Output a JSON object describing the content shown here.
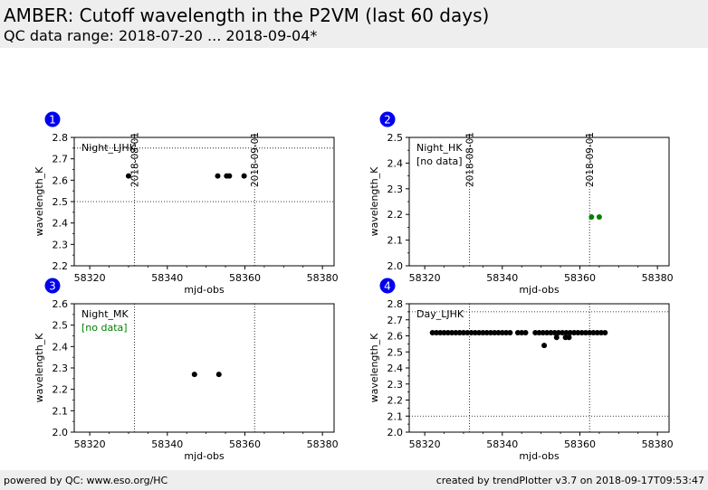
{
  "header": {
    "title": "AMBER: Cutoff wavelength in the P2VM (last 60 days)",
    "subtitle": "QC data range: 2018-07-20 ... 2018-09-04*"
  },
  "footer": {
    "left": "powered by QC: www.eso.org/HC",
    "right": "created by trendPlotter v3.7 on 2018-09-17T09:53:47"
  },
  "colors": {
    "badge": "#0000ee",
    "green": "#008000"
  },
  "date_markers": [
    {
      "label": "2018-08-01",
      "mjd": 58331.5
    },
    {
      "label": "2018-09-01",
      "mjd": 58362.5
    }
  ],
  "chart_data": [
    {
      "id": "1",
      "type": "scatter",
      "label": "Night_LJHK",
      "note": "",
      "xlabel": "mjd-obs",
      "ylabel": "wavelength_K",
      "xlim": [
        58316,
        58383
      ],
      "ylim": [
        2.2,
        2.8
      ],
      "xticks": [
        58320,
        58340,
        58360,
        58380
      ],
      "yticks": [
        2.2,
        2.3,
        2.4,
        2.5,
        2.6,
        2.7,
        2.8
      ],
      "hlines": [
        2.5,
        2.75
      ],
      "point_color": "#000000",
      "points": [
        [
          58330,
          2.62
        ],
        [
          58353,
          2.62
        ],
        [
          58355.3,
          2.62
        ],
        [
          58356,
          2.62
        ],
        [
          58359.8,
          2.62
        ]
      ]
    },
    {
      "id": "2",
      "type": "scatter",
      "label": "Night_HK",
      "note": "[no data]",
      "note_color": "#000000",
      "xlabel": "mjd-obs",
      "ylabel": "wavelength_K",
      "xlim": [
        58316,
        58383
      ],
      "ylim": [
        2.0,
        2.5
      ],
      "xticks": [
        58320,
        58340,
        58360,
        58380
      ],
      "yticks": [
        2.0,
        2.1,
        2.2,
        2.3,
        2.4,
        2.5
      ],
      "hlines": [],
      "point_color": "#008000",
      "points": [
        [
          58363,
          2.19
        ],
        [
          58365,
          2.19
        ]
      ]
    },
    {
      "id": "3",
      "type": "scatter",
      "label": "Night_MK",
      "note": "[no data]",
      "note_color": "#008000",
      "xlabel": "mjd-obs",
      "ylabel": "wavelength_K",
      "xlim": [
        58316,
        58383
      ],
      "ylim": [
        2.0,
        2.6
      ],
      "xticks": [
        58320,
        58340,
        58360,
        58380
      ],
      "yticks": [
        2.0,
        2.1,
        2.2,
        2.3,
        2.4,
        2.5,
        2.6
      ],
      "hlines": [],
      "point_color": "#000000",
      "points": [
        [
          58347,
          2.27
        ],
        [
          58353.3,
          2.27
        ]
      ]
    },
    {
      "id": "4",
      "type": "scatter",
      "label": "Day_LJHK",
      "note": "",
      "xlabel": "mjd-obs",
      "ylabel": "wavelength_K",
      "xlim": [
        58316,
        58383
      ],
      "ylim": [
        2.0,
        2.8
      ],
      "xticks": [
        58320,
        58340,
        58360,
        58380
      ],
      "yticks": [
        2.0,
        2.1,
        2.2,
        2.3,
        2.4,
        2.5,
        2.6,
        2.7,
        2.8
      ],
      "hlines": [
        2.1,
        2.75
      ],
      "point_color": "#000000",
      "points": [
        [
          58322,
          2.62
        ],
        [
          58323,
          2.62
        ],
        [
          58324,
          2.62
        ],
        [
          58325,
          2.62
        ],
        [
          58326,
          2.62
        ],
        [
          58327,
          2.62
        ],
        [
          58328,
          2.62
        ],
        [
          58329,
          2.62
        ],
        [
          58330,
          2.62
        ],
        [
          58331,
          2.62
        ],
        [
          58332,
          2.62
        ],
        [
          58333,
          2.62
        ],
        [
          58334,
          2.62
        ],
        [
          58335,
          2.62
        ],
        [
          58336,
          2.62
        ],
        [
          58337,
          2.62
        ],
        [
          58338,
          2.62
        ],
        [
          58339,
          2.62
        ],
        [
          58340,
          2.62
        ],
        [
          58341,
          2.62
        ],
        [
          58342,
          2.62
        ],
        [
          58344,
          2.62
        ],
        [
          58345,
          2.62
        ],
        [
          58346,
          2.62
        ],
        [
          58348.5,
          2.62
        ],
        [
          58349.5,
          2.62
        ],
        [
          58350.5,
          2.62
        ],
        [
          58351.5,
          2.62
        ],
        [
          58352.5,
          2.62
        ],
        [
          58353.5,
          2.62
        ],
        [
          58354.5,
          2.62
        ],
        [
          58355.5,
          2.62
        ],
        [
          58356.5,
          2.62
        ],
        [
          58357.5,
          2.62
        ],
        [
          58358.5,
          2.62
        ],
        [
          58359.5,
          2.62
        ],
        [
          58360.5,
          2.62
        ],
        [
          58361.5,
          2.62
        ],
        [
          58362.5,
          2.62
        ],
        [
          58363.5,
          2.62
        ],
        [
          58364.5,
          2.62
        ],
        [
          58365.5,
          2.62
        ],
        [
          58366.5,
          2.62
        ],
        [
          58350.8,
          2.54
        ],
        [
          58354,
          2.59
        ],
        [
          58356.3,
          2.59
        ],
        [
          58357.2,
          2.59
        ]
      ]
    }
  ]
}
